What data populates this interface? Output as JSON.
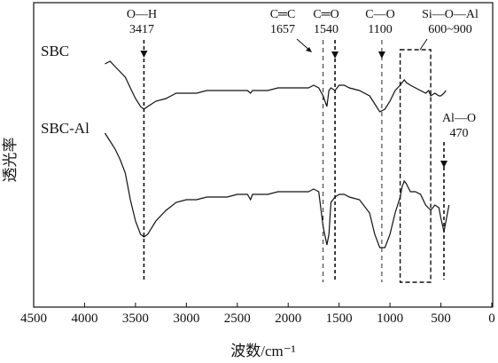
{
  "chart_data": {
    "type": "line",
    "title": "",
    "xlabel": "波数/cm⁻¹",
    "ylabel": "透光率",
    "xlim": [
      4500,
      0
    ],
    "x_reversed": true,
    "ylim": [
      0,
      1
    ],
    "xticks": [
      4500,
      4000,
      3500,
      3000,
      2500,
      2000,
      1500,
      1000,
      500,
      0
    ],
    "xtick_labels": [
      "4500",
      "4000",
      "3500",
      "3000",
      "2500",
      "2000",
      "1500",
      "1000",
      "500",
      "0"
    ],
    "grid": false,
    "series": [
      {
        "name": "SBC",
        "x": [
          3800,
          3750,
          3700,
          3650,
          3600,
          3550,
          3500,
          3450,
          3417,
          3380,
          3300,
          3200,
          3100,
          3000,
          2900,
          2800,
          2700,
          2600,
          2500,
          2400,
          2370,
          2350,
          2300,
          2200,
          2100,
          2000,
          1900,
          1800,
          1750,
          1700,
          1657,
          1620,
          1600,
          1580,
          1540,
          1500,
          1450,
          1400,
          1300,
          1200,
          1150,
          1100,
          1050,
          1000,
          950,
          900,
          880,
          860,
          840,
          800,
          750,
          700,
          650,
          620,
          600,
          560,
          520,
          500,
          470,
          450
        ],
        "y": [
          0.86,
          0.87,
          0.85,
          0.83,
          0.81,
          0.77,
          0.73,
          0.7,
          0.69,
          0.7,
          0.72,
          0.73,
          0.75,
          0.75,
          0.75,
          0.76,
          0.76,
          0.76,
          0.76,
          0.76,
          0.75,
          0.76,
          0.76,
          0.76,
          0.77,
          0.77,
          0.77,
          0.77,
          0.78,
          0.77,
          0.74,
          0.7,
          0.76,
          0.77,
          0.76,
          0.78,
          0.78,
          0.77,
          0.76,
          0.74,
          0.71,
          0.68,
          0.69,
          0.72,
          0.76,
          0.78,
          0.79,
          0.8,
          0.79,
          0.78,
          0.77,
          0.76,
          0.75,
          0.76,
          0.74,
          0.75,
          0.74,
          0.74,
          0.75,
          0.76
        ]
      },
      {
        "name": "SBC-Al",
        "x": [
          3800,
          3750,
          3700,
          3650,
          3600,
          3550,
          3500,
          3450,
          3417,
          3380,
          3300,
          3200,
          3100,
          3000,
          2900,
          2800,
          2700,
          2600,
          2500,
          2400,
          2370,
          2350,
          2300,
          2200,
          2100,
          2000,
          1900,
          1800,
          1750,
          1700,
          1657,
          1620,
          1600,
          1580,
          1540,
          1500,
          1450,
          1400,
          1300,
          1200,
          1150,
          1100,
          1050,
          1000,
          950,
          900,
          880,
          860,
          840,
          800,
          750,
          700,
          650,
          600,
          560,
          520,
          500,
          470,
          450,
          420
        ],
        "y": [
          0.6,
          0.57,
          0.54,
          0.5,
          0.45,
          0.35,
          0.27,
          0.22,
          0.21,
          0.22,
          0.27,
          0.31,
          0.34,
          0.35,
          0.35,
          0.36,
          0.36,
          0.36,
          0.37,
          0.37,
          0.35,
          0.37,
          0.37,
          0.37,
          0.38,
          0.38,
          0.38,
          0.38,
          0.39,
          0.38,
          0.25,
          0.18,
          0.22,
          0.34,
          0.36,
          0.37,
          0.37,
          0.36,
          0.35,
          0.3,
          0.22,
          0.17,
          0.17,
          0.22,
          0.3,
          0.36,
          0.4,
          0.42,
          0.41,
          0.38,
          0.38,
          0.37,
          0.33,
          0.31,
          0.33,
          0.32,
          0.28,
          0.23,
          0.27,
          0.33
        ]
      }
    ],
    "annotations": [
      {
        "id": "oh",
        "line1": "O—H",
        "line2": "3417",
        "x": 3417,
        "style": "bold-dashed"
      },
      {
        "id": "cc",
        "line1": "C═C",
        "line2": "1657",
        "x": 1657,
        "style": "thin-dashed"
      },
      {
        "id": "co-double",
        "line1": "C═O",
        "line2": "1540",
        "x": 1540,
        "style": "bold-dashed"
      },
      {
        "id": "co-single",
        "line1": "C—O",
        "line2": "1100",
        "x": 1080,
        "style": "thin-dashed"
      },
      {
        "id": "sioal",
        "line1": "Si—O—Al",
        "line2": "600~900",
        "x_range": [
          900,
          600
        ],
        "style": "box"
      },
      {
        "id": "alo",
        "line1": "Al—O",
        "line2": "470",
        "x": 470,
        "style": "bold-dashed"
      }
    ]
  }
}
